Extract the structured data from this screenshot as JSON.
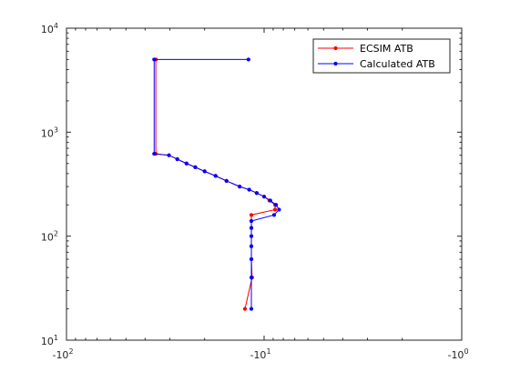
{
  "chart_data": {
    "type": "line",
    "title": "",
    "xlabel": "",
    "ylabel": "",
    "x_scale": "log-negative",
    "y_scale": "log",
    "xlim": [
      -100,
      -1
    ],
    "ylim": [
      10,
      10000
    ],
    "grid": false,
    "legend_position": "top-right",
    "x_ticks": [
      {
        "value": -100,
        "base": "-10",
        "exp": "2"
      },
      {
        "value": -10,
        "base": "-10",
        "exp": "1"
      },
      {
        "value": -1,
        "base": "-10",
        "exp": "0"
      }
    ],
    "y_ticks": [
      {
        "value": 10,
        "base": "10",
        "exp": "1"
      },
      {
        "value": 100,
        "base": "10",
        "exp": "2"
      },
      {
        "value": 1000,
        "base": "10",
        "exp": "3"
      },
      {
        "value": 10000,
        "base": "10",
        "exp": "4"
      }
    ],
    "series": [
      {
        "name": "ECSIM ATB",
        "color": "#ff0000",
        "points": [
          [
            -12.5,
            20
          ],
          [
            -11.5,
            40
          ],
          [
            -11.6,
            60
          ],
          [
            -11.6,
            80
          ],
          [
            -11.6,
            100
          ],
          [
            -11.6,
            120
          ],
          [
            -11.6,
            140
          ],
          [
            -11.6,
            160
          ],
          [
            -8.8,
            180
          ],
          [
            -8.8,
            200
          ],
          [
            -9.4,
            220
          ],
          [
            -10.0,
            240
          ],
          [
            -10.9,
            260
          ],
          [
            -11.9,
            280
          ],
          [
            -13.3,
            300
          ],
          [
            -15.5,
            340
          ],
          [
            -17.6,
            380
          ],
          [
            -20.0,
            420
          ],
          [
            -22.3,
            460
          ],
          [
            -24.7,
            500
          ],
          [
            -27.5,
            550
          ],
          [
            -30.3,
            600
          ],
          [
            -35.3,
            620
          ],
          [
            -35.3,
            5000
          ]
        ]
      },
      {
        "name": "Calculated ATB",
        "color": "#0000ff",
        "points": [
          [
            -11.6,
            20
          ],
          [
            -11.6,
            40
          ],
          [
            -11.6,
            60
          ],
          [
            -11.6,
            80
          ],
          [
            -11.6,
            100
          ],
          [
            -11.6,
            120
          ],
          [
            -11.6,
            140
          ],
          [
            -8.9,
            160
          ],
          [
            -8.4,
            180
          ],
          [
            -8.7,
            200
          ],
          [
            -9.3,
            220
          ],
          [
            -10.0,
            240
          ],
          [
            -10.9,
            260
          ],
          [
            -11.9,
            280
          ],
          [
            -13.3,
            300
          ],
          [
            -15.5,
            340
          ],
          [
            -17.6,
            380
          ],
          [
            -20.0,
            420
          ],
          [
            -22.3,
            460
          ],
          [
            -24.7,
            500
          ],
          [
            -27.5,
            550
          ],
          [
            -30.3,
            600
          ],
          [
            -36.0,
            620
          ],
          [
            -36.0,
            5000
          ],
          [
            -12.0,
            5000
          ]
        ]
      }
    ]
  }
}
